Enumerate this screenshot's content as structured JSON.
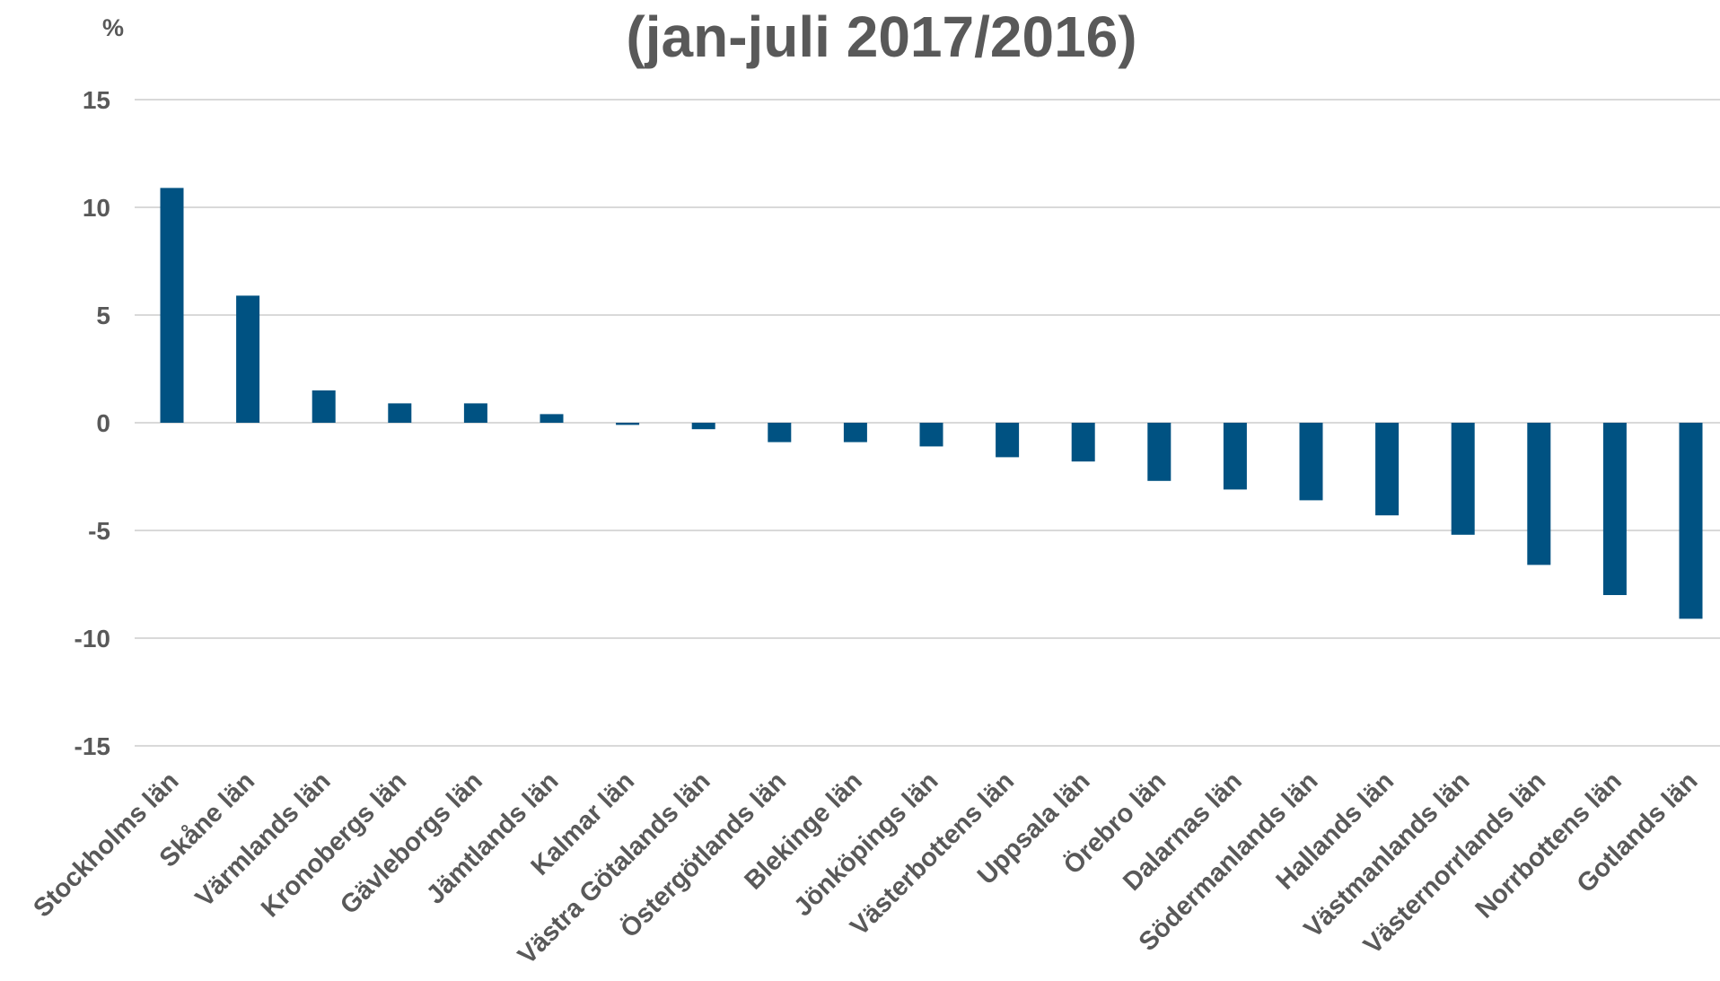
{
  "chart_data": {
    "type": "bar",
    "title_lines": [
      "",
      "(jan-juli 2017/2016)"
    ],
    "unit": "%",
    "ylim": [
      -15,
      15
    ],
    "yticks": [
      15,
      10,
      5,
      0,
      -5,
      -10,
      -15
    ],
    "grid": true,
    "bar_color": "#005282",
    "categories": [
      "Stockholms län",
      "Skåne län",
      "Värmlands län",
      "Kronobergs län",
      "Gävleborgs län",
      "Jämtlands län",
      "Kalmar län",
      "Västra Götalands län",
      "Östergötlands län",
      "Blekinge län",
      "Jönköpings län",
      "Västerbottens län",
      "Uppsala län",
      "Örebro län",
      "Dalarnas län",
      "Södermanlands län",
      "Hallands län",
      "Västmanlands län",
      "Västernorrlands län",
      "Norrbottens län",
      "Gotlands län"
    ],
    "values": [
      10.9,
      5.9,
      1.5,
      0.9,
      0.9,
      0.4,
      -0.1,
      -0.3,
      -0.9,
      -0.9,
      -1.1,
      -1.6,
      -1.8,
      -2.7,
      -3.1,
      -3.6,
      -4.3,
      -5.2,
      -6.6,
      -8.0,
      -9.1
    ]
  }
}
